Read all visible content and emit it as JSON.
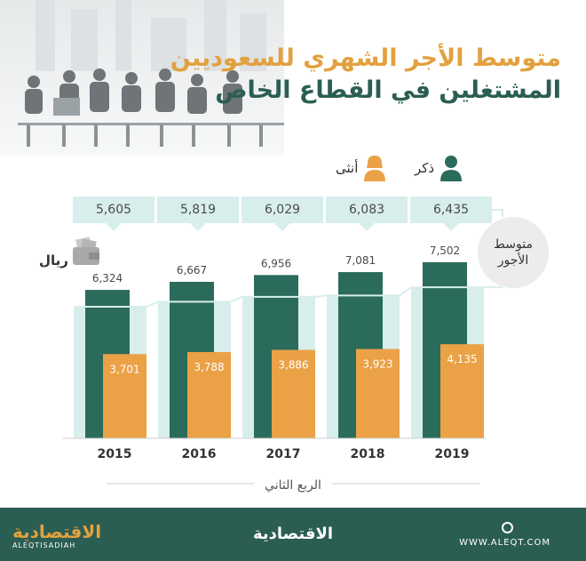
{
  "header": {
    "title_line1": "متوسط الأجر الشهري للسعوديين",
    "title_line2": "المشتغلين في القطاع الخاص"
  },
  "legend": {
    "male_label": "ذكر",
    "female_label": "أنثى",
    "male_icon": "person-icon",
    "female_icon": "person-female-icon"
  },
  "average_label_line1": "متوسط",
  "average_label_line2": "الأجور",
  "unit_label": "ريال",
  "unit_icon": "wallet-icon",
  "axis_caption": "الربع الثاني",
  "footer": {
    "brand_arabic": "الاقتصادية",
    "brand_latin": "ALEQTISADIAH",
    "center_brand": "الاقتصادية",
    "website": "WWW.ALEQT.COM"
  },
  "colors": {
    "male": "#2b6b5c",
    "female": "#eba146",
    "average_band": "#d8eeec",
    "title_orange": "#e2a13e",
    "title_green": "#2b5e52",
    "footer": "#2b5e52"
  },
  "chart_data": {
    "type": "bar",
    "categories": [
      "2015",
      "2016",
      "2017",
      "2018",
      "2019"
    ],
    "series": [
      {
        "name": "ذكر",
        "values": [
          6324,
          6667,
          6956,
          7081,
          7502
        ]
      },
      {
        "name": "أنثى",
        "values": [
          3701,
          3788,
          3886,
          3923,
          4135
        ]
      },
      {
        "name": "متوسط الأجور",
        "values": [
          5605,
          5819,
          6029,
          6083,
          6435
        ]
      }
    ],
    "value_labels": {
      "male": [
        "6,324",
        "6,667",
        "6,956",
        "7,081",
        "7,502"
      ],
      "female": [
        "3,701",
        "3,788",
        "3,886",
        "3,923",
        "4,135"
      ],
      "average": [
        "5,605",
        "5,819",
        "6,029",
        "6,083",
        "6,435"
      ]
    },
    "xlabel": "الربع الثاني",
    "ylabel": "ريال",
    "ylim": [
      0,
      10000
    ],
    "grid": false
  }
}
